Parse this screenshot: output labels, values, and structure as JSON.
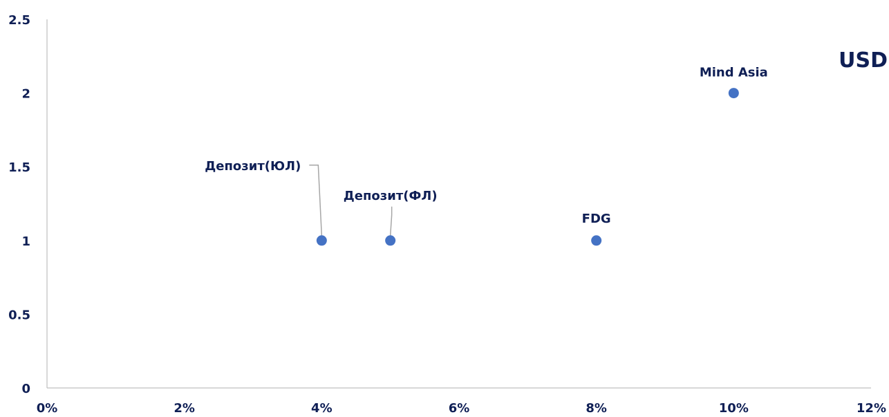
{
  "chart_data": {
    "type": "scatter",
    "title": "",
    "xlabel": "",
    "ylabel": "",
    "xlim": [
      0,
      0.12
    ],
    "ylim": [
      0,
      2.5
    ],
    "x_ticks": [
      "0%",
      "2%",
      "4%",
      "6%",
      "8%",
      "10%",
      "12%"
    ],
    "y_ticks": [
      "0",
      "0.5",
      "1",
      "1.5",
      "2",
      "2.5"
    ],
    "grid": false,
    "legend": "none",
    "annotation": "USD",
    "marker_color": "#4472c4",
    "label_color": "#0f1f55",
    "points": [
      {
        "label": "Депозит(ЮЛ)",
        "x": 0.04,
        "y": 1
      },
      {
        "label": "Депозит(ФЛ)",
        "x": 0.05,
        "y": 1
      },
      {
        "label": "FDG",
        "x": 0.08,
        "y": 1
      },
      {
        "label": "Mind Asia",
        "x": 0.1,
        "y": 2
      }
    ]
  }
}
